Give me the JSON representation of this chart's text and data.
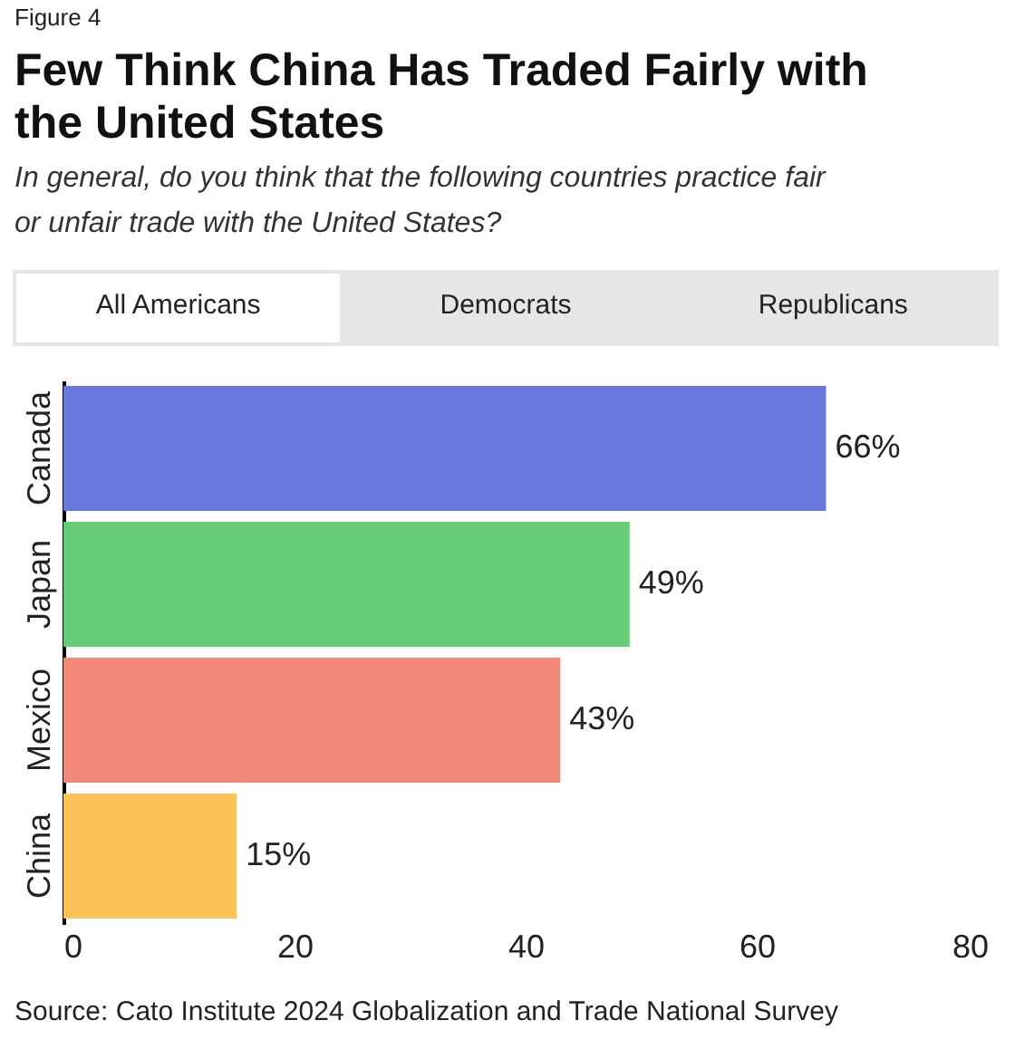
{
  "chart_data": {
    "type": "bar",
    "orientation": "horizontal",
    "title": "Few Think China Has Traded Fairly with the United States",
    "subtitle": "In general, do you think that the following countries practice fair or unfair trade with the United States?",
    "categories": [
      "Canada",
      "Japan",
      "Mexico",
      "China"
    ],
    "values": [
      66,
      49,
      43,
      15
    ],
    "colors": [
      "#6878dc",
      "#66cc77",
      "#f28878",
      "#fcc35a"
    ],
    "value_labels": [
      "66%",
      "49%",
      "43%",
      "15%"
    ],
    "xlim": [
      0,
      80
    ],
    "xticks": [
      0,
      20,
      40,
      60,
      80
    ],
    "grid": false,
    "annotations": [
      "Figure 4",
      "All Americans",
      "Democrats",
      "Republicans",
      "Source: Cato Institute 2024 Globalization and Trade National Survey"
    ]
  }
}
